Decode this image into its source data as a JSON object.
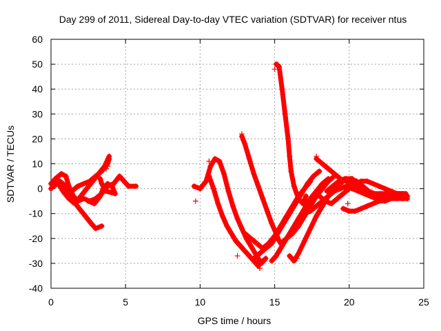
{
  "chart_data": {
    "type": "scatter",
    "title": "Day 299 of 2011, Sidereal Day-to-day VTEC variation (SDTVAR) for receiver ntus",
    "xlabel": "GPS time / hours",
    "ylabel": "SDTVAR / TECUs",
    "xlim": [
      0,
      25
    ],
    "ylim": [
      -40,
      60
    ],
    "xticks": [
      0,
      5,
      10,
      15,
      20,
      25
    ],
    "yticks": [
      -40,
      -30,
      -20,
      -10,
      0,
      10,
      20,
      30,
      40,
      50,
      60
    ],
    "grid": true,
    "legend": "none",
    "marker": "plus",
    "color": "#ff0000",
    "series": [
      {
        "values": [
          [
            0.0,
            2
          ],
          [
            0.3,
            4
          ],
          [
            0.7,
            6
          ],
          [
            1.0,
            5
          ],
          [
            1.2,
            1
          ],
          [
            1.5,
            -3
          ],
          [
            1.8,
            -5
          ],
          [
            2.2,
            -4
          ],
          [
            2.6,
            -5
          ],
          [
            3.0,
            -4
          ],
          [
            3.4,
            -2
          ],
          [
            3.8,
            1
          ],
          [
            4.2,
            2
          ],
          [
            4.6,
            5
          ],
          [
            4.9,
            3
          ],
          [
            5.2,
            1
          ],
          [
            5.7,
            1
          ]
        ]
      },
      {
        "values": [
          [
            0.0,
            0
          ],
          [
            0.4,
            3
          ],
          [
            0.8,
            -1
          ],
          [
            1.2,
            -4
          ],
          [
            1.6,
            -6
          ],
          [
            2.0,
            -3
          ],
          [
            2.4,
            0
          ],
          [
            2.8,
            3
          ],
          [
            3.2,
            6
          ],
          [
            3.6,
            9
          ],
          [
            3.9,
            13
          ]
        ]
      },
      {
        "values": [
          [
            0.3,
            4
          ],
          [
            0.7,
            2
          ],
          [
            1.1,
            -2
          ],
          [
            1.5,
            -5
          ],
          [
            1.9,
            -8
          ],
          [
            2.3,
            -11
          ],
          [
            2.7,
            -14
          ],
          [
            3.0,
            -16
          ],
          [
            3.4,
            -15
          ]
        ]
      },
      {
        "values": [
          [
            0.2,
            1
          ],
          [
            0.6,
            3
          ],
          [
            1.0,
            1
          ],
          [
            1.4,
            -1
          ],
          [
            1.8,
            1
          ],
          [
            2.2,
            2
          ],
          [
            2.6,
            3
          ],
          [
            3.0,
            5
          ],
          [
            3.4,
            7
          ],
          [
            3.8,
            10
          ],
          [
            3.9,
            12
          ]
        ]
      },
      {
        "values": [
          [
            2.5,
            -5
          ],
          [
            2.9,
            -6
          ],
          [
            3.3,
            -3
          ],
          [
            3.5,
            0
          ],
          [
            3.8,
            2
          ],
          [
            4.1,
            1
          ],
          [
            4.3,
            -2
          ],
          [
            3.7,
            -1
          ],
          [
            3.4,
            2
          ],
          [
            3.3,
            4
          ]
        ]
      },
      {
        "values": [
          [
            9.6,
            1
          ],
          [
            10.0,
            0
          ],
          [
            10.4,
            3
          ],
          [
            10.7,
            9
          ],
          [
            11.0,
            12
          ],
          [
            11.3,
            11
          ],
          [
            11.6,
            6
          ],
          [
            11.9,
            -1
          ],
          [
            12.2,
            -7
          ],
          [
            12.5,
            -12
          ],
          [
            12.8,
            -16
          ],
          [
            13.1,
            -20
          ],
          [
            13.4,
            -23
          ],
          [
            13.8,
            -27
          ],
          [
            14.1,
            -30
          ],
          [
            14.4,
            -28
          ]
        ]
      },
      {
        "values": [
          [
            10.6,
            5
          ],
          [
            10.9,
            0
          ],
          [
            11.2,
            -6
          ],
          [
            11.5,
            -11
          ],
          [
            11.8,
            -15
          ],
          [
            12.1,
            -18
          ],
          [
            12.4,
            -21
          ],
          [
            12.7,
            -23
          ],
          [
            13.0,
            -25
          ],
          [
            13.3,
            -27
          ],
          [
            13.6,
            -29
          ],
          [
            13.9,
            -31
          ],
          [
            14.2,
            -29
          ]
        ]
      },
      {
        "values": [
          [
            12.8,
            21
          ],
          [
            13.0,
            18
          ],
          [
            13.3,
            12
          ],
          [
            13.6,
            6
          ],
          [
            13.9,
            1
          ],
          [
            14.2,
            -4
          ],
          [
            14.5,
            -9
          ],
          [
            14.8,
            -14
          ],
          [
            15.1,
            -18
          ],
          [
            15.3,
            -21
          ]
        ]
      },
      {
        "values": [
          [
            15.1,
            50
          ],
          [
            15.3,
            49
          ],
          [
            15.5,
            40
          ],
          [
            15.7,
            30
          ],
          [
            15.9,
            20
          ],
          [
            16.0,
            13
          ],
          [
            16.1,
            7
          ],
          [
            16.3,
            1
          ],
          [
            16.6,
            -4
          ],
          [
            16.9,
            -6
          ],
          [
            17.1,
            -3
          ]
        ]
      },
      {
        "values": [
          [
            13.0,
            -18
          ],
          [
            13.4,
            -20
          ],
          [
            13.8,
            -22
          ],
          [
            14.2,
            -24
          ],
          [
            14.6,
            -22
          ],
          [
            15.0,
            -19
          ],
          [
            15.4,
            -15
          ],
          [
            15.8,
            -11
          ],
          [
            16.2,
            -7
          ],
          [
            16.6,
            -3
          ],
          [
            17.0,
            0
          ],
          [
            17.4,
            3
          ]
        ]
      },
      {
        "values": [
          [
            14.8,
            -29
          ],
          [
            15.1,
            -27
          ],
          [
            15.4,
            -24
          ],
          [
            15.8,
            -20
          ],
          [
            16.2,
            -16
          ],
          [
            16.6,
            -12
          ],
          [
            17.0,
            -8
          ],
          [
            17.4,
            -4
          ],
          [
            17.8,
            -1
          ],
          [
            18.2,
            2
          ],
          [
            18.6,
            4
          ]
        ]
      },
      {
        "values": [
          [
            15.4,
            -22
          ],
          [
            15.8,
            -20
          ],
          [
            16.2,
            -18
          ],
          [
            16.6,
            -15
          ],
          [
            17.0,
            -11
          ],
          [
            17.4,
            -7
          ],
          [
            17.8,
            -3
          ],
          [
            18.2,
            0
          ],
          [
            18.6,
            3
          ],
          [
            19.0,
            5
          ]
        ]
      },
      {
        "values": [
          [
            16.0,
            -27
          ],
          [
            16.3,
            -29
          ],
          [
            16.6,
            -26
          ],
          [
            17.0,
            -21
          ],
          [
            17.4,
            -16
          ],
          [
            17.8,
            -11
          ],
          [
            18.2,
            -7
          ],
          [
            18.6,
            -3
          ],
          [
            19.0,
            0
          ],
          [
            19.4,
            2
          ],
          [
            19.8,
            4
          ],
          [
            20.2,
            4
          ]
        ]
      },
      {
        "values": [
          [
            13.6,
            -28
          ],
          [
            14.0,
            -26
          ],
          [
            14.4,
            -24
          ],
          [
            14.8,
            -22
          ],
          [
            15.2,
            -18
          ],
          [
            15.6,
            -14
          ],
          [
            16.0,
            -10
          ],
          [
            16.4,
            -6
          ],
          [
            16.8,
            -2
          ],
          [
            17.2,
            2
          ],
          [
            17.6,
            5
          ],
          [
            18.0,
            7
          ]
        ]
      },
      {
        "values": [
          [
            17.8,
            12
          ],
          [
            18.2,
            10
          ],
          [
            18.6,
            8
          ],
          [
            19.0,
            6
          ],
          [
            19.4,
            4
          ],
          [
            19.8,
            3
          ],
          [
            20.2,
            2
          ],
          [
            20.6,
            1
          ],
          [
            21.0,
            -1
          ],
          [
            21.4,
            -2
          ],
          [
            21.8,
            -3
          ],
          [
            22.2,
            -3
          ],
          [
            22.6,
            -3
          ],
          [
            23.0,
            -3
          ],
          [
            23.4,
            -3
          ],
          [
            23.8,
            -3
          ]
        ]
      },
      {
        "values": [
          [
            18.0,
            -3
          ],
          [
            18.4,
            -5
          ],
          [
            18.8,
            -6
          ],
          [
            19.2,
            -4
          ],
          [
            19.6,
            -2
          ],
          [
            20.0,
            0
          ],
          [
            20.4,
            2
          ],
          [
            20.8,
            3
          ],
          [
            21.2,
            3
          ],
          [
            21.6,
            2
          ],
          [
            22.0,
            1
          ],
          [
            22.4,
            0
          ],
          [
            22.8,
            -1
          ],
          [
            23.2,
            -2
          ],
          [
            23.6,
            -2
          ],
          [
            23.9,
            -3
          ]
        ]
      },
      {
        "values": [
          [
            19.6,
            -8
          ],
          [
            20.0,
            -9
          ],
          [
            20.4,
            -9
          ],
          [
            20.8,
            -8
          ],
          [
            21.2,
            -7
          ],
          [
            21.6,
            -6
          ],
          [
            22.0,
            -5
          ],
          [
            22.4,
            -5
          ],
          [
            22.8,
            -4
          ],
          [
            23.2,
            -4
          ],
          [
            23.6,
            -4
          ],
          [
            23.9,
            -4
          ]
        ]
      },
      {
        "values": [
          [
            18.5,
            -1
          ],
          [
            18.9,
            1
          ],
          [
            19.3,
            3
          ],
          [
            19.7,
            4
          ],
          [
            20.1,
            4
          ],
          [
            20.5,
            3
          ],
          [
            20.9,
            1
          ],
          [
            21.3,
            -1
          ],
          [
            21.7,
            -2
          ],
          [
            22.1,
            -2
          ],
          [
            22.5,
            -2
          ],
          [
            22.9,
            -2
          ],
          [
            23.3,
            -2
          ],
          [
            23.8,
            -2
          ]
        ]
      },
      {
        "values": [
          [
            17.0,
            -10
          ],
          [
            17.4,
            -9
          ],
          [
            17.8,
            -7
          ],
          [
            18.2,
            -5
          ],
          [
            18.6,
            -3
          ],
          [
            19.0,
            -1
          ],
          [
            19.4,
            0
          ],
          [
            19.8,
            1
          ],
          [
            20.2,
            0
          ],
          [
            20.6,
            -1
          ],
          [
            21.0,
            -2
          ],
          [
            21.4,
            -3
          ],
          [
            21.8,
            -4
          ],
          [
            22.2,
            -4
          ],
          [
            22.6,
            -4
          ]
        ]
      }
    ],
    "outliers": [
      [
        3.8,
        9
      ],
      [
        3.7,
        8
      ],
      [
        9.7,
        -5
      ],
      [
        10.6,
        11
      ],
      [
        12.5,
        -27
      ],
      [
        12.8,
        22
      ],
      [
        14.0,
        -32
      ],
      [
        15.0,
        48
      ],
      [
        15.2,
        50
      ],
      [
        16.5,
        -28
      ],
      [
        17.8,
        13
      ],
      [
        19.9,
        -6
      ],
      [
        20.0,
        -9
      ]
    ]
  }
}
